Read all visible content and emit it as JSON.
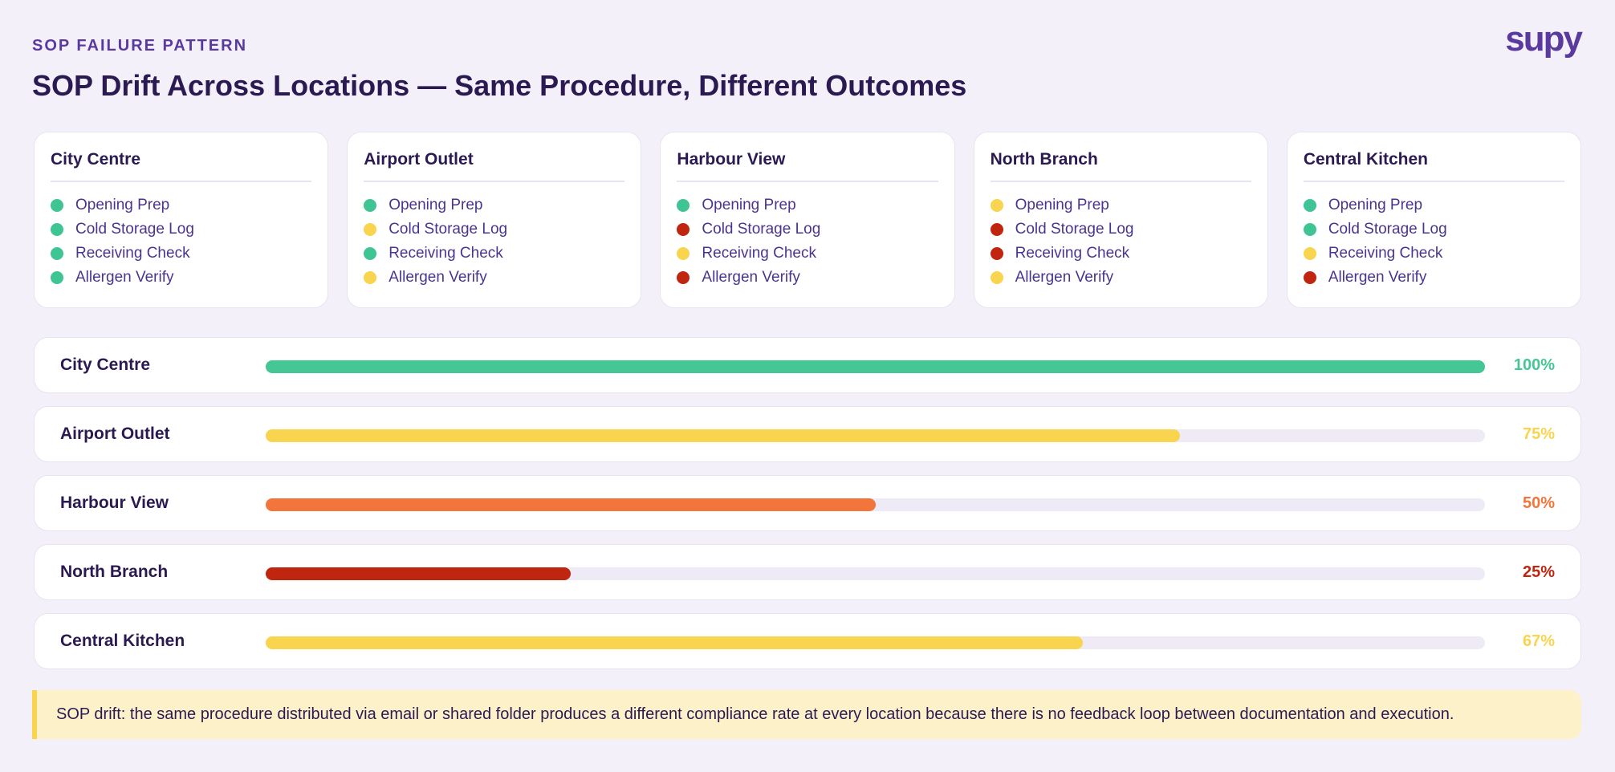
{
  "header": {
    "eyebrow": "SOP FAILURE PATTERN",
    "title": "SOP Drift Across Locations — Same Procedure, Different Outcomes",
    "logo": "supy"
  },
  "cards": [
    {
      "title": "City Centre",
      "items": [
        {
          "label": "Opening Prep",
          "color": "#3ec593"
        },
        {
          "label": "Cold Storage Log",
          "color": "#3ec593"
        },
        {
          "label": "Receiving Check",
          "color": "#3ec593"
        },
        {
          "label": "Allergen Verify",
          "color": "#3ec593"
        }
      ]
    },
    {
      "title": "Airport Outlet",
      "items": [
        {
          "label": "Opening Prep",
          "color": "#3ec593"
        },
        {
          "label": "Cold Storage Log",
          "color": "#f9d44f"
        },
        {
          "label": "Receiving Check",
          "color": "#3ec593"
        },
        {
          "label": "Allergen Verify",
          "color": "#f9d44f"
        }
      ]
    },
    {
      "title": "Harbour View",
      "items": [
        {
          "label": "Opening Prep",
          "color": "#3ec593"
        },
        {
          "label": "Cold Storage Log",
          "color": "#c0260f"
        },
        {
          "label": "Receiving Check",
          "color": "#f9d44f"
        },
        {
          "label": "Allergen Verify",
          "color": "#c0260f"
        }
      ]
    },
    {
      "title": "North Branch",
      "items": [
        {
          "label": "Opening Prep",
          "color": "#f9d44f"
        },
        {
          "label": "Cold Storage Log",
          "color": "#c0260f"
        },
        {
          "label": "Receiving Check",
          "color": "#c0260f"
        },
        {
          "label": "Allergen Verify",
          "color": "#f9d44f"
        }
      ]
    },
    {
      "title": "Central Kitchen",
      "items": [
        {
          "label": "Opening Prep",
          "color": "#3ec593"
        },
        {
          "label": "Cold Storage Log",
          "color": "#3ec593"
        },
        {
          "label": "Receiving Check",
          "color": "#f9d44f"
        },
        {
          "label": "Allergen Verify",
          "color": "#c0260f"
        }
      ]
    }
  ],
  "bars": {
    "xlim": [
      0,
      100
    ],
    "rows": [
      {
        "name": "City Centre",
        "value": 100,
        "value_label": "100%",
        "color": "#45c795"
      },
      {
        "name": "Airport Outlet",
        "value": 75,
        "value_label": "75%",
        "color": "#f9d44f"
      },
      {
        "name": "Harbour View",
        "value": 50,
        "value_label": "50%",
        "color": "#f2763c"
      },
      {
        "name": "North Branch",
        "value": 25,
        "value_label": "25%",
        "color": "#c0260f"
      },
      {
        "name": "Central Kitchen",
        "value": 67,
        "value_label": "67%",
        "color": "#f9d44f"
      }
    ]
  },
  "note": "SOP drift: the same procedure distributed via email or shared folder produces a different compliance rate at every location because there is no feedback loop between documentation and execution."
}
